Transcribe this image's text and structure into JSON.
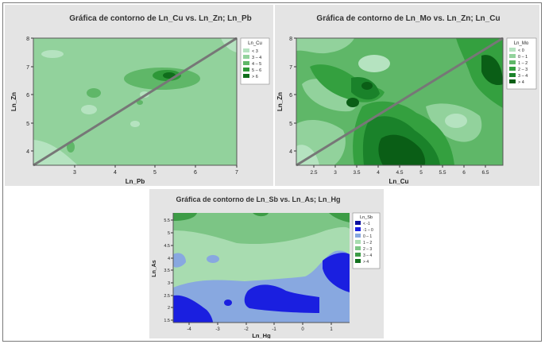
{
  "chart_data": [
    {
      "type": "contour",
      "title": "Gráfica de contorno de Ln_Cu vs. Ln_Zn; Ln_Pb",
      "xlabel": "Ln_Pb",
      "ylabel": "Ln_Zn",
      "xlim": [
        2.1,
        7.0
      ],
      "ylim": [
        3.5,
        8.0
      ],
      "xticks": [
        3,
        4,
        5,
        6,
        7
      ],
      "yticks": [
        4,
        5,
        6,
        7,
        8
      ],
      "legend_title": "Ln_Cu",
      "legend": [
        {
          "label": "< 3",
          "color": "#b5e3c0"
        },
        {
          "label": "3 – 4",
          "color": "#92d29c"
        },
        {
          "label": "4 – 5",
          "color": "#5fb768"
        },
        {
          "label": "5 – 6",
          "color": "#2e9838"
        },
        {
          "label": "> 6",
          "color": "#0f6e1b"
        }
      ],
      "reference_line": {
        "from": [
          2.1,
          3.5
        ],
        "to": [
          7.0,
          8.0
        ]
      }
    },
    {
      "type": "contour",
      "title": "Gráfica de contorno de Ln_Mo vs. Ln_Zn; Ln_Cu",
      "xlabel": "Ln_Cu",
      "ylabel": "Ln_Zn",
      "xlim": [
        2.1,
        6.9
      ],
      "ylim": [
        3.5,
        8.0
      ],
      "xticks": [
        2.5,
        3.0,
        3.5,
        4.0,
        4.5,
        5.0,
        5.5,
        6.0,
        6.5
      ],
      "yticks": [
        4,
        5,
        6,
        7,
        8
      ],
      "legend_title": "Ln_Mo",
      "legend": [
        {
          "label": "< 0",
          "color": "#b5e3c0"
        },
        {
          "label": "0 – 1",
          "color": "#92d29c"
        },
        {
          "label": "1 – 2",
          "color": "#5fb768"
        },
        {
          "label": "2 – 3",
          "color": "#34a03f"
        },
        {
          "label": "3 – 4",
          "color": "#1a822a"
        },
        {
          "label": "> 4",
          "color": "#0a5e16"
        }
      ],
      "reference_line": {
        "from": [
          2.1,
          3.5
        ],
        "to": [
          6.9,
          8.0
        ]
      }
    },
    {
      "type": "contour",
      "title": "Gráfica de contorno de Ln_Sb vs. Ln_As; Ln_Hg",
      "xlabel": "Ln_Hg",
      "ylabel": "Ln_As",
      "xlim": [
        -4.6,
        1.6
      ],
      "ylim": [
        1.4,
        5.8
      ],
      "xticks": [
        -4,
        -3,
        -2,
        -1,
        0,
        1
      ],
      "yticks": [
        1.5,
        2.0,
        2.5,
        3.0,
        3.5,
        4.0,
        4.5,
        5.0,
        5.5
      ],
      "legend_title": "Ln_Sb",
      "legend": [
        {
          "label": "< -1",
          "color": "#0b0f9e"
        },
        {
          "label": "-1 – 0",
          "color": "#1a1fe0"
        },
        {
          "label": "0 – 1",
          "color": "#88a8e0"
        },
        {
          "label": "1 – 2",
          "color": "#a8dcb0"
        },
        {
          "label": "2 – 3",
          "color": "#7cc585"
        },
        {
          "label": "3 – 4",
          "color": "#3d9c46"
        },
        {
          "label": "> 4",
          "color": "#13701e"
        }
      ]
    }
  ]
}
